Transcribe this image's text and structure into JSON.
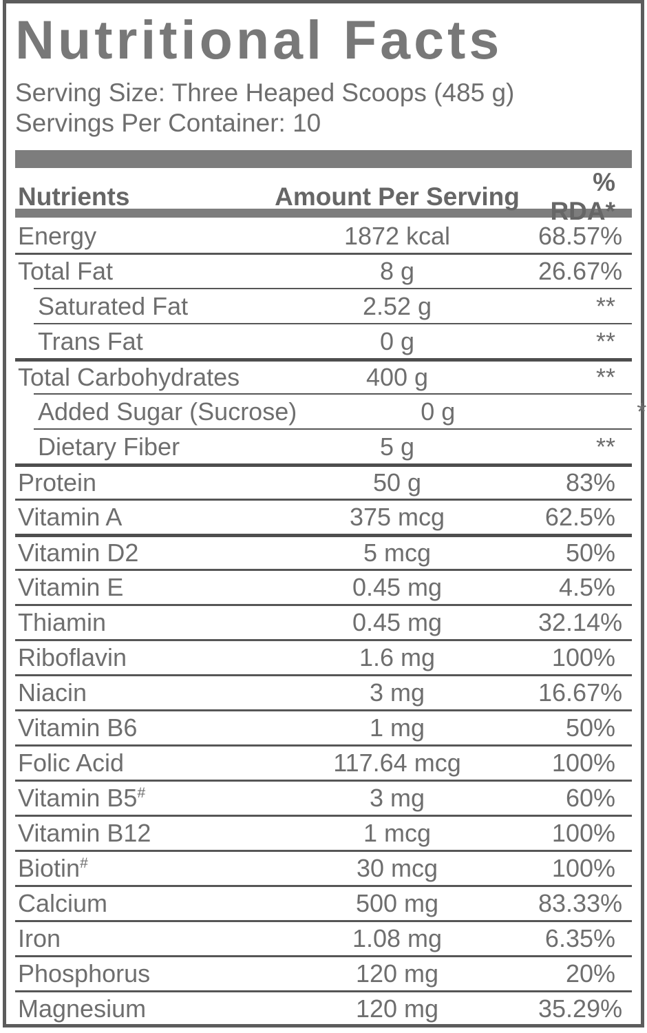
{
  "title": "Nutritional Facts",
  "serving": {
    "size_line": "Serving Size: Three Heaped Scoops (485 g)",
    "container_line": "Servings Per Container: 10"
  },
  "table": {
    "columns": [
      "Nutrients",
      "Amount Per Serving",
      "% RDA*"
    ],
    "rows": [
      {
        "nutrient": "Energy",
        "amount": "1872 kcal",
        "rda": "68.57%",
        "indent": false,
        "sep": "none"
      },
      {
        "nutrient": "Total Fat",
        "amount": "8 g",
        "rda": "26.67%",
        "indent": false,
        "sep": "full"
      },
      {
        "nutrient": "Saturated Fat",
        "amount": "2.52 g",
        "rda": "**",
        "indent": true,
        "sep": "indent"
      },
      {
        "nutrient": "Trans Fat",
        "amount": "0 g",
        "rda": "**",
        "indent": true,
        "sep": "indent"
      },
      {
        "nutrient": "Total Carbohydrates",
        "amount": "400 g",
        "rda": "**",
        "indent": false,
        "sep": "thick"
      },
      {
        "nutrient": "Added Sugar (Sucrose)",
        "amount": "0 g",
        "rda": "**",
        "indent": true,
        "sep": "indent"
      },
      {
        "nutrient": "Dietary Fiber",
        "amount": "5 g",
        "rda": "**",
        "indent": true,
        "sep": "indent"
      },
      {
        "nutrient": "Protein",
        "amount": "50 g",
        "rda": "83%",
        "indent": false,
        "sep": "thick"
      },
      {
        "nutrient": "Vitamin A",
        "amount": "375 mcg",
        "rda": "62.5%",
        "indent": false,
        "sep": "full"
      },
      {
        "nutrient": "Vitamin D2",
        "amount": "5 mcg",
        "rda": "50%",
        "indent": false,
        "sep": "thick"
      },
      {
        "nutrient": "Vitamin E",
        "amount": "0.45 mg",
        "rda": "4.5%",
        "indent": false,
        "sep": "full"
      },
      {
        "nutrient": "Thiamin",
        "amount": "0.45 mg",
        "rda": "32.14%",
        "indent": false,
        "sep": "full"
      },
      {
        "nutrient": "Riboflavin",
        "amount": "1.6 mg",
        "rda": "100%",
        "indent": false,
        "sep": "full"
      },
      {
        "nutrient": "Niacin",
        "amount": "3 mg",
        "rda": "16.67%",
        "indent": false,
        "sep": "full"
      },
      {
        "nutrient": "Vitamin B6",
        "amount": "1 mg",
        "rda": "50%",
        "indent": false,
        "sep": "full"
      },
      {
        "nutrient": "Folic Acid",
        "amount": "117.64 mcg",
        "rda": "100%",
        "indent": false,
        "sep": "full"
      },
      {
        "nutrient": "Vitamin B5",
        "sup": "#",
        "amount": "3 mg",
        "rda": "60%",
        "indent": false,
        "sep": "full"
      },
      {
        "nutrient": "Vitamin B12",
        "amount": "1 mcg",
        "rda": "100%",
        "indent": false,
        "sep": "full"
      },
      {
        "nutrient": "Biotin",
        "sup": "#",
        "amount": "30 mcg",
        "rda": "100%",
        "indent": false,
        "sep": "full"
      },
      {
        "nutrient": "Calcium",
        "amount": "500 mg",
        "rda": "83.33%",
        "indent": false,
        "sep": "full"
      },
      {
        "nutrient": "Iron",
        "amount": "1.08 mg",
        "rda": "6.35%",
        "indent": false,
        "sep": "full"
      },
      {
        "nutrient": "Phosphorus",
        "amount": "120 mg",
        "rda": "20%",
        "indent": false,
        "sep": "full"
      },
      {
        "nutrient": "Magnesium",
        "amount": "120 mg",
        "rda": "35.29%",
        "indent": false,
        "sep": "full"
      }
    ]
  },
  "colors": {
    "text_gray": "#6e6e6e",
    "title_gray": "#787878",
    "bar_gray": "#7d7d7d",
    "separator_gray": "#565656",
    "frame_gray": "#5c5c5c",
    "background": "#ffffff"
  }
}
